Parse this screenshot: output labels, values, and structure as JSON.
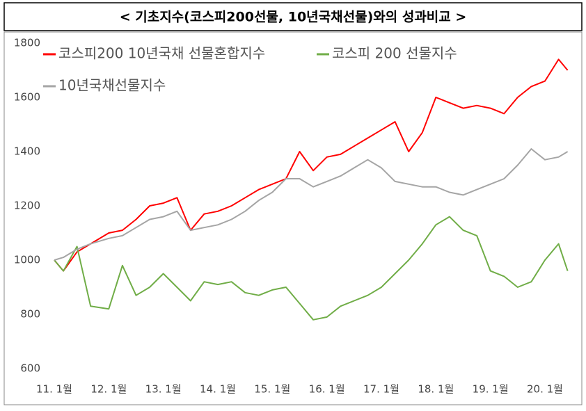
{
  "chart_data": {
    "type": "line",
    "title": "< 기초지수(코스피200선물, 10년국채선물)와의 성과비교 >",
    "x": [
      0,
      2,
      5,
      8,
      12,
      15,
      18,
      21,
      24,
      27,
      30,
      33,
      36,
      39,
      42,
      45,
      48,
      51,
      54,
      57,
      60,
      63,
      66,
      69,
      72,
      75,
      78,
      81,
      84,
      87,
      90,
      93,
      96,
      99,
      102,
      105,
      108,
      111,
      113
    ],
    "xlim": [
      0,
      113
    ],
    "xticks": [
      {
        "value": 0,
        "label": "11. 1월"
      },
      {
        "value": 12,
        "label": "12. 1월"
      },
      {
        "value": 24,
        "label": "13. 1월"
      },
      {
        "value": 36,
        "label": "14. 1월"
      },
      {
        "value": 48,
        "label": "15. 1월"
      },
      {
        "value": 60,
        "label": "16. 1월"
      },
      {
        "value": 72,
        "label": "17. 1월"
      },
      {
        "value": 84,
        "label": "18. 1월"
      },
      {
        "value": 96,
        "label": "19. 1월"
      },
      {
        "value": 108,
        "label": "20. 1월"
      }
    ],
    "ylim": [
      600,
      1800
    ],
    "yticks": [
      600,
      800,
      1000,
      1200,
      1400,
      1600,
      1800
    ],
    "legend": "top-left",
    "series": [
      {
        "name": "코스피200 10년국채 선물혼합지수",
        "color": "#ff0000",
        "values": [
          1000,
          960,
          1030,
          1060,
          1100,
          1110,
          1150,
          1200,
          1210,
          1230,
          1110,
          1170,
          1180,
          1200,
          1230,
          1260,
          1280,
          1300,
          1400,
          1330,
          1380,
          1390,
          1420,
          1450,
          1480,
          1510,
          1400,
          1470,
          1600,
          1580,
          1560,
          1570,
          1560,
          1540,
          1600,
          1640,
          1660,
          1740,
          1700
        ]
      },
      {
        "name": "코스피 200 선물지수",
        "color": "#70ad47",
        "values": [
          1000,
          960,
          1050,
          830,
          820,
          980,
          870,
          900,
          950,
          900,
          850,
          920,
          910,
          920,
          880,
          870,
          890,
          900,
          840,
          780,
          790,
          830,
          850,
          870,
          900,
          950,
          1000,
          1060,
          1130,
          1160,
          1110,
          1090,
          960,
          940,
          900,
          920,
          1000,
          1060,
          960
        ]
      },
      {
        "name": "10년국채선물지수",
        "color": "#a5a5a5",
        "values": [
          1000,
          1010,
          1040,
          1060,
          1080,
          1090,
          1120,
          1150,
          1160,
          1180,
          1110,
          1120,
          1130,
          1150,
          1180,
          1220,
          1250,
          1300,
          1300,
          1270,
          1290,
          1310,
          1340,
          1370,
          1340,
          1290,
          1280,
          1270,
          1270,
          1250,
          1240,
          1260,
          1280,
          1300,
          1350,
          1410,
          1370,
          1380,
          1400
        ]
      }
    ]
  }
}
